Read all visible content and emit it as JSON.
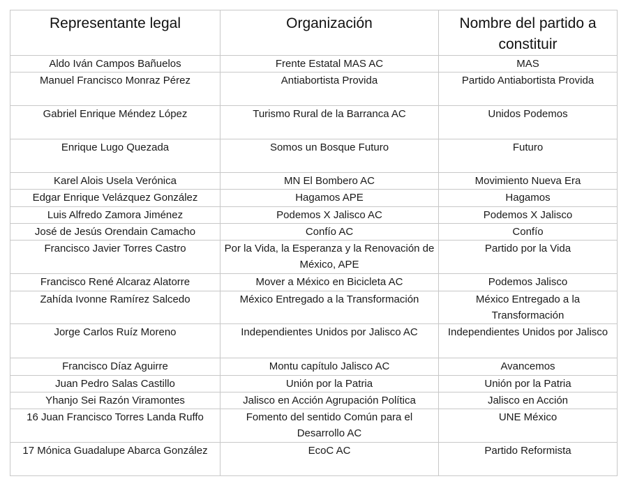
{
  "headers": [
    "Representante legal",
    "Organización",
    "Nombre del partido a constituir"
  ],
  "rows": [
    [
      "Aldo Iván Campos Bañuelos",
      "Frente Estatal MAS AC",
      "MAS"
    ],
    [
      "Manuel Francisco Monraz Pérez",
      "Antiabortista Provida",
      "Partido Antiabortista Provida"
    ],
    [
      "Gabriel Enrique Méndez López",
      "Turismo Rural de la Barranca AC",
      "Unidos Podemos"
    ],
    [
      "Enrique Lugo Quezada",
      "Somos un Bosque Futuro",
      "Futuro"
    ],
    [
      "Karel Alois Usela Verónica",
      "MN El Bombero AC",
      "Movimiento Nueva Era"
    ],
    [
      "Edgar Enrique Velázquez González",
      "Hagamos APE",
      "Hagamos"
    ],
    [
      "Luis Alfredo Zamora Jiménez",
      "Podemos X Jalisco AC",
      "Podemos X Jalisco"
    ],
    [
      "José de Jesús Orendain Camacho",
      "Confío AC",
      "Confío"
    ],
    [
      "Francisco Javier Torres Castro",
      "Por la Vida, la Esperanza y la Renovación de México, APE",
      "Partido por la Vida"
    ],
    [
      "Francisco René Alcaraz Alatorre",
      "Mover a México en Bicicleta AC",
      "Podemos Jalisco"
    ],
    [
      "Zahída Ivonne Ramírez Salcedo",
      "México Entregado a la Transformación",
      "México Entregado a la Transformación"
    ],
    [
      "Jorge Carlos Ruíz Moreno",
      "Independientes Unidos por Jalisco AC",
      "Independientes Unidos por Jalisco"
    ],
    [
      "Francisco Díaz Aguirre",
      "Montu capítulo Jalisco AC",
      "Avancemos"
    ],
    [
      "Juan Pedro Salas Castillo",
      "Unión por la Patria",
      "Unión por la Patria"
    ],
    [
      "Yhanjo Sei Razón Viramontes",
      "Jalisco en Acción Agrupación Política",
      "Jalisco en Acción"
    ],
    [
      "16 Juan Francisco Torres Landa Ruffo",
      "Fomento del sentido Común para el Desarrollo AC",
      "UNE México"
    ],
    [
      "17 Mónica Guadalupe Abarca González",
      "EcoC AC",
      "Partido Reformista"
    ]
  ]
}
